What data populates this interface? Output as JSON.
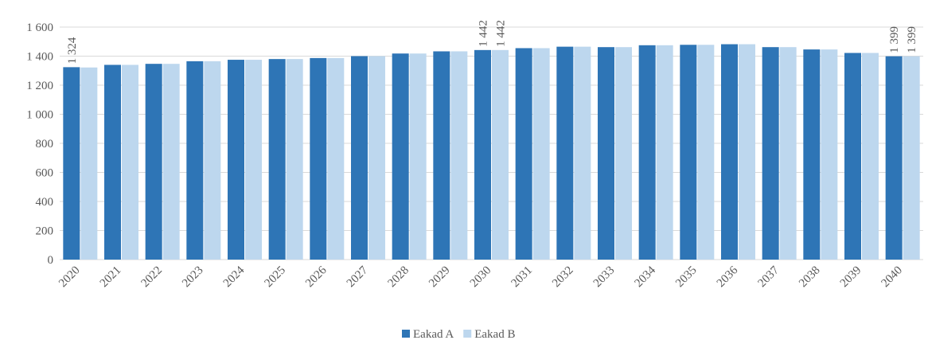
{
  "chart_data": {
    "type": "bar",
    "categories": [
      "2020",
      "2021",
      "2022",
      "2023",
      "2024",
      "2025",
      "2026",
      "2027",
      "2028",
      "2029",
      "2030",
      "2031",
      "2032",
      "2033",
      "2034",
      "2035",
      "2036",
      "2037",
      "2038",
      "2039",
      "2040"
    ],
    "series": [
      {
        "name": "Eakad A",
        "color": "#2e75b6",
        "values": [
          1324,
          1340,
          1347,
          1365,
          1375,
          1380,
          1387,
          1400,
          1418,
          1433,
          1442,
          1455,
          1465,
          1462,
          1475,
          1478,
          1482,
          1462,
          1446,
          1422,
          1399
        ],
        "value_labels": [
          "1 324",
          null,
          null,
          null,
          null,
          null,
          null,
          null,
          null,
          null,
          "1 442",
          null,
          null,
          null,
          null,
          null,
          null,
          null,
          null,
          null,
          "1 399"
        ]
      },
      {
        "name": "Eakad B",
        "color": "#bdd7ee",
        "values": [
          1322,
          1340,
          1347,
          1365,
          1375,
          1380,
          1387,
          1400,
          1418,
          1433,
          1442,
          1455,
          1465,
          1462,
          1475,
          1478,
          1482,
          1462,
          1446,
          1422,
          1399
        ],
        "value_labels": [
          null,
          null,
          null,
          null,
          null,
          null,
          null,
          null,
          null,
          null,
          "1 442",
          null,
          null,
          null,
          null,
          null,
          null,
          null,
          null,
          null,
          "1 399"
        ]
      }
    ],
    "ylim": [
      0,
      1600
    ],
    "yticks": [
      0,
      200,
      400,
      600,
      800,
      {
        "value": 1000,
        "label": "1 000"
      },
      {
        "value": 1200,
        "label": "1 200"
      },
      {
        "value": 1400,
        "label": "1 400"
      },
      {
        "value": 1600,
        "label": "1 600"
      }
    ],
    "grid": true,
    "legend": "bottom"
  }
}
